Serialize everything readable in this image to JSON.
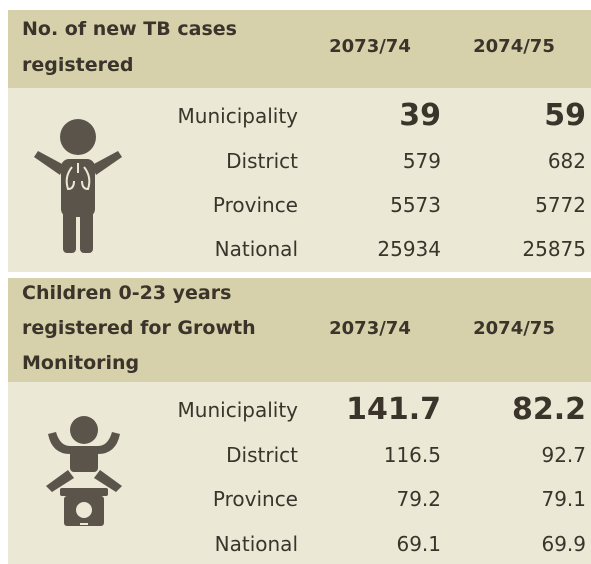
{
  "sections": [
    {
      "title_lines": [
        "No. of new TB cases",
        "registered"
      ],
      "columns": [
        "2073/74",
        "2074/75"
      ],
      "rows": [
        {
          "label": "Municipality",
          "values": [
            39,
            59
          ]
        },
        {
          "label": "District",
          "values": [
            579,
            682
          ]
        },
        {
          "label": "Province",
          "values": [
            5573,
            5772
          ]
        },
        {
          "label": "National",
          "values": [
            25934,
            25875
          ]
        }
      ]
    },
    {
      "title_lines": [
        "Children 0-23 years",
        "registered for Growth",
        "Monitoring"
      ],
      "columns": [
        "2073/74",
        "2074/75"
      ],
      "rows": [
        {
          "label": "Municipality",
          "values": [
            141.7,
            82.2
          ]
        },
        {
          "label": "District",
          "values": [
            116.5,
            92.7
          ]
        },
        {
          "label": "Province",
          "values": [
            79.2,
            79.1
          ]
        },
        {
          "label": "National",
          "values": [
            69.1,
            69.9
          ]
        }
      ]
    }
  ]
}
